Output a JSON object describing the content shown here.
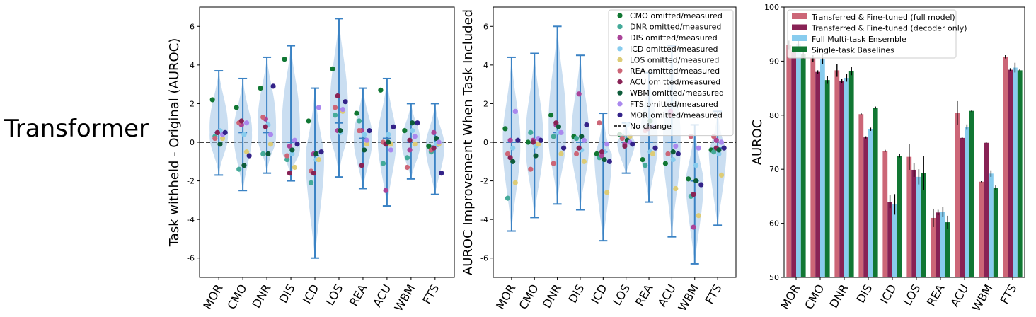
{
  "row_label": "Transformer",
  "colors": {
    "CMO": "#117733",
    "DNR": "#44AA99",
    "DIS": "#AA4499",
    "ICD": "#88CCEE",
    "LOS": "#DDCC77",
    "REA": "#CC6677",
    "ACU": "#882255",
    "WBM": "#0D5C3A",
    "FTS": "#AA88EE",
    "MOR": "#332288",
    "violin": "#9EC2E6",
    "whisker": "#3A82C4",
    "zero": "#000000",
    "bar_full": "#CC6677",
    "bar_dec": "#882255",
    "bar_ens": "#88CCEE",
    "bar_single": "#117733"
  },
  "chart_data": [
    {
      "type": "violin",
      "title": "",
      "ylabel": "Task withheld - Original (AUROC)",
      "xlabel": "",
      "ylim": [
        -7,
        7
      ],
      "yticks": [
        -6,
        -4,
        -2,
        0,
        2,
        4,
        6
      ],
      "categories": [
        "MOR",
        "CMO",
        "DNR",
        "DIS",
        "ICD",
        "LOS",
        "REA",
        "ACU",
        "WBM",
        "FTS"
      ],
      "whisker_low": [
        -1.7,
        -2.5,
        -1.6,
        -2.0,
        -6.0,
        -1.8,
        -2.4,
        -3.3,
        -1.9,
        -2.7
      ],
      "whisker_high": [
        3.7,
        3.3,
        4.4,
        5.0,
        2.8,
        6.4,
        2.8,
        3.3,
        2.0,
        2.0
      ],
      "medians": [
        0.5,
        0.5,
        0.5,
        0.0,
        -0.7,
        1.0,
        0.2,
        0.2,
        0.0,
        -0.2
      ],
      "points": [
        [
          [
            "CMO",
            2.2
          ],
          [
            "DNR",
            0.3
          ],
          [
            "DIS",
            0.5
          ],
          [
            "ICD",
            0.6
          ],
          [
            "LOS",
            0.2
          ],
          [
            "REA",
            0.2
          ],
          [
            "ACU",
            0.5
          ],
          [
            "WBM",
            -0.1
          ],
          [
            "FTS",
            0.4
          ],
          [
            "MOR",
            0.5
          ]
        ],
        [
          [
            "CMO",
            1.8
          ],
          [
            "DNR",
            -1.4
          ],
          [
            "DIS",
            0.9
          ],
          [
            "ICD",
            0.4
          ],
          [
            "LOS",
            -0.5
          ],
          [
            "REA",
            1.0
          ],
          [
            "ACU",
            1.1
          ],
          [
            "WBM",
            -1.2
          ],
          [
            "FTS",
            1.0
          ],
          [
            "MOR",
            -0.7
          ]
        ],
        [
          [
            "CMO",
            2.8
          ],
          [
            "DNR",
            -0.6
          ],
          [
            "DIS",
            1.2
          ],
          [
            "ICD",
            0.9
          ],
          [
            "LOS",
            -0.1
          ],
          [
            "REA",
            1.3
          ],
          [
            "ACU",
            0.8
          ],
          [
            "WBM",
            -0.6
          ],
          [
            "FTS",
            0.4
          ],
          [
            "MOR",
            2.9
          ]
        ],
        [
          [
            "CMO",
            4.3
          ],
          [
            "DNR",
            -0.9
          ],
          [
            "DIS",
            -0.2
          ],
          [
            "ICD",
            -0.6
          ],
          [
            "LOS",
            -1.3
          ],
          [
            "REA",
            -0.7
          ],
          [
            "ACU",
            -1.6
          ],
          [
            "WBM",
            -0.4
          ],
          [
            "FTS",
            0.1
          ],
          [
            "MOR",
            -0.1
          ]
        ],
        [
          [
            "CMO",
            1.1
          ],
          [
            "DNR",
            -2.1
          ],
          [
            "DIS",
            -0.6
          ],
          [
            "ICD",
            -0.9
          ],
          [
            "LOS",
            -0.9
          ],
          [
            "REA",
            -1.5
          ],
          [
            "ACU",
            -1.6
          ],
          [
            "WBM",
            -0.6
          ],
          [
            "FTS",
            1.8
          ],
          [
            "MOR",
            -0.5
          ]
        ],
        [
          [
            "CMO",
            3.8
          ],
          [
            "DNR",
            1.4
          ],
          [
            "DIS",
            0.6
          ],
          [
            "ICD",
            0.5
          ],
          [
            "LOS",
            1.6
          ],
          [
            "REA",
            1.8
          ],
          [
            "ACU",
            2.4
          ],
          [
            "WBM",
            0.6
          ],
          [
            "FTS",
            1.7
          ],
          [
            "MOR",
            2.1
          ]
        ],
        [
          [
            "CMO",
            1.5
          ],
          [
            "DNR",
            1.1
          ],
          [
            "DIS",
            0.6
          ],
          [
            "ICD",
            0.4
          ],
          [
            "LOS",
            -0.1
          ],
          [
            "REA",
            0.6
          ],
          [
            "ACU",
            -1.2
          ],
          [
            "WBM",
            -0.4
          ],
          [
            "FTS",
            0.1
          ],
          [
            "MOR",
            0.6
          ]
        ],
        [
          [
            "CMO",
            2.7
          ],
          [
            "DNR",
            -1.1
          ],
          [
            "DIS",
            -2.5
          ],
          [
            "ICD",
            0.4
          ],
          [
            "LOS",
            -0.1
          ],
          [
            "REA",
            0.0
          ],
          [
            "ACU",
            -0.1
          ],
          [
            "WBM",
            0.0
          ],
          [
            "FTS",
            -0.4
          ],
          [
            "MOR",
            0.8
          ]
        ],
        [
          [
            "CMO",
            0.6
          ],
          [
            "DNR",
            -0.8
          ],
          [
            "DIS",
            -0.4
          ],
          [
            "ICD",
            0.6
          ],
          [
            "LOS",
            -0.1
          ],
          [
            "REA",
            -1.3
          ],
          [
            "ACU",
            0.1
          ],
          [
            "WBM",
            1.0
          ],
          [
            "FTS",
            0.3
          ],
          [
            "MOR",
            1.0
          ]
        ],
        [
          [
            "CMO",
            -0.2
          ],
          [
            "DNR",
            -0.5
          ],
          [
            "DIS",
            0.5
          ],
          [
            "ICD",
            -0.1
          ],
          [
            "LOS",
            -0.1
          ],
          [
            "REA",
            -0.4
          ],
          [
            "ACU",
            -0.3
          ],
          [
            "WBM",
            0.2
          ],
          [
            "FTS",
            0.0
          ],
          [
            "MOR",
            -1.6
          ]
        ]
      ]
    },
    {
      "type": "violin",
      "title": "",
      "ylabel": "AUROC Improvement When Task Included",
      "xlabel": "",
      "ylim": [
        -7,
        7
      ],
      "yticks": [
        -6,
        -4,
        -2,
        0,
        2,
        4,
        6
      ],
      "categories": [
        "MOR",
        "CMO",
        "DNR",
        "DIS",
        "ICD",
        "LOS",
        "REA",
        "ACU",
        "WBM",
        "FTS"
      ],
      "whisker_low": [
        -4.6,
        -3.9,
        -3.2,
        -3.5,
        -5.1,
        -1.6,
        -3.1,
        -4.9,
        -6.3,
        -4.3
      ],
      "whisker_high": [
        4.4,
        4.6,
        6.0,
        4.5,
        1.5,
        1.0,
        3.6,
        5.0,
        0.9,
        1.6
      ],
      "medians": [
        0.0,
        0.0,
        0.5,
        0.0,
        -0.5,
        0.0,
        0.0,
        0.0,
        -2.0,
        -0.3
      ],
      "points": [
        [
          [
            "CMO",
            0.7
          ],
          [
            "DNR",
            -2.9
          ],
          [
            "DIS",
            0.1
          ],
          [
            "ICD",
            -0.3
          ],
          [
            "LOS",
            -2.1
          ],
          [
            "REA",
            -0.6
          ],
          [
            "ACU",
            -0.8
          ],
          [
            "WBM",
            -1.0
          ],
          [
            "FTS",
            1.6
          ],
          [
            "MOR",
            0.1
          ]
        ],
        [
          [
            "CMO",
            0.0
          ],
          [
            "DNR",
            0.5
          ],
          [
            "DIS",
            0.1
          ],
          [
            "ICD",
            -0.2
          ],
          [
            "LOS",
            -0.1
          ],
          [
            "REA",
            -1.4
          ],
          [
            "ACU",
            0.0
          ],
          [
            "WBM",
            -0.7
          ],
          [
            "FTS",
            0.2
          ],
          [
            "MOR",
            0.1
          ]
        ],
        [
          [
            "CMO",
            1.4
          ],
          [
            "DNR",
            0.3
          ],
          [
            "DIS",
            0.9
          ],
          [
            "ICD",
            0.5
          ],
          [
            "LOS",
            -0.6
          ],
          [
            "REA",
            -1.1
          ],
          [
            "ACU",
            1.0
          ],
          [
            "WBM",
            0.8
          ],
          [
            "FTS",
            0.5
          ],
          [
            "MOR",
            -0.3
          ]
        ],
        [
          [
            "CMO",
            0.3
          ],
          [
            "DNR",
            0.2
          ],
          [
            "DIS",
            2.5
          ],
          [
            "ICD",
            -0.4
          ],
          [
            "LOS",
            -1.0
          ],
          [
            "REA",
            -0.6
          ],
          [
            "ACU",
            -0.3
          ],
          [
            "WBM",
            0.3
          ],
          [
            "FTS",
            0.1
          ],
          [
            "MOR",
            0.9
          ]
        ],
        [
          [
            "CMO",
            -0.6
          ],
          [
            "DNR",
            -0.8
          ],
          [
            "DIS",
            -0.7
          ],
          [
            "ICD",
            -0.5
          ],
          [
            "LOS",
            -2.6
          ],
          [
            "REA",
            1.0
          ],
          [
            "ACU",
            -0.5
          ],
          [
            "WBM",
            -0.9
          ],
          [
            "FTS",
            -0.1
          ],
          [
            "MOR",
            -1.0
          ]
        ],
        [
          [
            "CMO",
            0.4
          ],
          [
            "DNR",
            0.3
          ],
          [
            "DIS",
            -0.1
          ],
          [
            "ICD",
            0.9
          ],
          [
            "LOS",
            0.3
          ],
          [
            "REA",
            0.2
          ],
          [
            "ACU",
            -0.2
          ],
          [
            "WBM",
            0.1
          ],
          [
            "FTS",
            0.0
          ],
          [
            "MOR",
            -0.1
          ]
        ],
        [
          [
            "CMO",
            -0.9
          ],
          [
            "DNR",
            -1.2
          ],
          [
            "DIS",
            0.7
          ],
          [
            "ICD",
            -0.5
          ],
          [
            "LOS",
            -0.6
          ],
          [
            "REA",
            0.6
          ],
          [
            "ACU",
            0.7
          ],
          [
            "WBM",
            1.1
          ],
          [
            "FTS",
            0.8
          ],
          [
            "MOR",
            -0.3
          ]
        ],
        [
          [
            "CMO",
            -1.1
          ],
          [
            "DNR",
            -0.6
          ],
          [
            "DIS",
            1.6
          ],
          [
            "ICD",
            -0.9
          ],
          [
            "LOS",
            -2.4
          ],
          [
            "REA",
            -0.6
          ],
          [
            "ACU",
            1.4
          ],
          [
            "WBM",
            -0.5
          ],
          [
            "FTS",
            -0.2
          ],
          [
            "MOR",
            -0.6
          ]
        ],
        [
          [
            "CMO",
            -1.9
          ],
          [
            "DNR",
            -2.8
          ],
          [
            "DIS",
            -4.4
          ],
          [
            "ICD",
            -1.2
          ],
          [
            "LOS",
            -3.8
          ],
          [
            "REA",
            0.3
          ],
          [
            "ACU",
            -2.7
          ],
          [
            "WBM",
            -2.0
          ],
          [
            "FTS",
            -0.3
          ],
          [
            "MOR",
            -2.2
          ]
        ],
        [
          [
            "CMO",
            -0.4
          ],
          [
            "DNR",
            -0.5
          ],
          [
            "DIS",
            0.1
          ],
          [
            "ICD",
            -0.6
          ],
          [
            "LOS",
            -1.7
          ],
          [
            "REA",
            0.3
          ],
          [
            "ACU",
            -0.3
          ],
          [
            "WBM",
            -0.4
          ],
          [
            "FTS",
            0.0
          ],
          [
            "MOR",
            -0.3
          ]
        ]
      ],
      "legend": [
        {
          "key": "CMO",
          "label": "CMO omitted/measured"
        },
        {
          "key": "DNR",
          "label": "DNR omitted/measured"
        },
        {
          "key": "DIS",
          "label": "DIS omitted/measured"
        },
        {
          "key": "ICD",
          "label": "ICD omitted/measured"
        },
        {
          "key": "LOS",
          "label": "LOS omitted/measured"
        },
        {
          "key": "REA",
          "label": "REA omitted/measured"
        },
        {
          "key": "ACU",
          "label": "ACU omitted/measured"
        },
        {
          "key": "WBM",
          "label": "WBM omitted/measured"
        },
        {
          "key": "FTS",
          "label": "FTS omitted/measured"
        },
        {
          "key": "MOR",
          "label": "MOR omitted/measured"
        },
        {
          "key": "zero",
          "label": "No change",
          "line": true
        }
      ],
      "legend_placement": "top-right"
    },
    {
      "type": "bar",
      "title": "",
      "ylabel": "AUROC",
      "xlabel": "",
      "ylim": [
        50,
        100
      ],
      "yticks": [
        50,
        60,
        70,
        80,
        90,
        100
      ],
      "categories": [
        "MOR",
        "CMO",
        "DNR",
        "DIS",
        "ICD",
        "LOS",
        "REA",
        "ACU",
        "WBM",
        "FTS"
      ],
      "series": [
        {
          "name": "Transferred & Fine-tuned (full model)",
          "color_key": "bar_full",
          "values": [
            93.0,
            90.5,
            88.3,
            80.2,
            73.4,
            72.3,
            61.0,
            80.4,
            67.7,
            90.8
          ],
          "errors": [
            0.8,
            0.6,
            1.2,
            0.2,
            0.2,
            2.4,
            1.7,
            2.2,
            0.1,
            0.3
          ]
        },
        {
          "name": "Transferred & Fine-tuned (decoder only)",
          "color_key": "bar_dec",
          "values": [
            92.0,
            88.0,
            86.3,
            75.9,
            64.0,
            69.9,
            62.0,
            75.8,
            74.9,
            88.4
          ],
          "errors": [
            0.5,
            0.3,
            0.4,
            0.2,
            1.2,
            1.3,
            0.5,
            0.2,
            0.1,
            0.3
          ]
        },
        {
          "name": "Full Multi-task Ensemble",
          "color_key": "bar_ens",
          "values": [
            93.2,
            90.4,
            86.9,
            77.4,
            63.5,
            68.6,
            62.1,
            77.8,
            69.2,
            88.8
          ],
          "errors": [
            0.6,
            1.0,
            0.7,
            0.3,
            1.9,
            1.4,
            0.9,
            0.5,
            0.6,
            0.9
          ]
        },
        {
          "name": "Single-task Baselines",
          "color_key": "bar_single",
          "values": [
            91.3,
            86.5,
            88.2,
            81.4,
            72.5,
            69.3,
            60.2,
            80.8,
            66.6,
            88.3
          ],
          "errors": [
            0.9,
            0.7,
            0.8,
            0.2,
            0.3,
            3.1,
            1.2,
            0.2,
            0.4,
            0.2
          ]
        }
      ],
      "legend_placement": "top-left"
    }
  ]
}
